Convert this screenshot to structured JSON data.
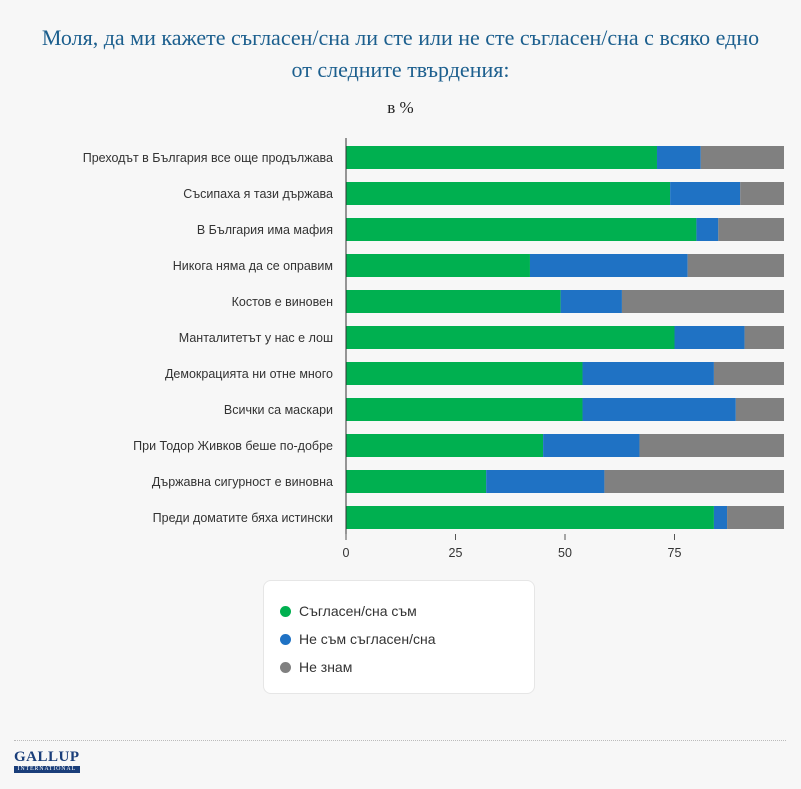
{
  "header": {
    "title_line1": "Моля, да ми кажете съгласен/сна ли сте или не сте съгласен/сна с всяко едно",
    "title_line2": "от следните твърдения:",
    "unit_label": "в %"
  },
  "legend": {
    "items": [
      {
        "label": "Съгласен/сна съм",
        "color": "#00b050"
      },
      {
        "label": "Не съм съгласен/сна",
        "color": "#1f72c4"
      },
      {
        "label": "Не знам",
        "color": "#808080"
      }
    ]
  },
  "logo": {
    "main": "GALLUP",
    "sub": "INTERNATIONAL"
  },
  "chart_data": {
    "type": "bar",
    "orientation": "horizontal",
    "stacked": true,
    "title": "Моля, да ми кажете съгласен/сна ли сте или не сте съгласен/сна с всяко едно от следните твърдения:",
    "subtitle": "в %",
    "categories": [
      "Преходът в България все още продължава",
      "Съсипаха я тази държава",
      "В България има мафия",
      "Никога няма да се оправим",
      "Костов е виновен",
      "Манталитетът у нас е лош",
      "Демокрацията ни отне много",
      "Всички са маскари",
      "При Тодор Живков беше по-добре",
      "Държавна сигурност е виновна",
      "Преди доматите бяха истински"
    ],
    "series": [
      {
        "name": "Съгласен/сна съм",
        "color": "#00b050",
        "values": [
          71,
          74,
          80,
          42,
          49,
          75,
          54,
          54,
          45,
          32,
          84
        ]
      },
      {
        "name": "Не съм съгласен/сна",
        "color": "#1f72c4",
        "values": [
          10,
          16,
          5,
          36,
          14,
          16,
          30,
          35,
          22,
          27,
          3
        ]
      },
      {
        "name": "Не знам",
        "color": "#808080",
        "values": [
          19,
          10,
          15,
          22,
          37,
          9,
          16,
          11,
          33,
          41,
          13
        ]
      }
    ],
    "xticks": [
      "0",
      "25",
      "50",
      "75"
    ],
    "xlim": [
      0,
      100
    ],
    "legend_position": "bottom-center",
    "grid": false
  }
}
